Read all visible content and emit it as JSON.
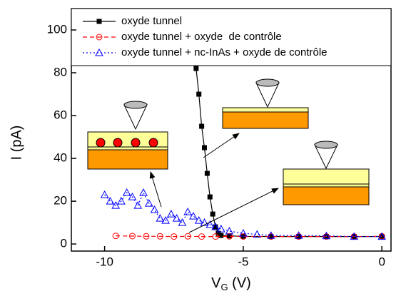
{
  "chart_data": {
    "type": "line",
    "x_label": {
      "main": "V",
      "sub": "G",
      "rest": " (V)"
    },
    "y_label": "I (pA)",
    "xlim": [
      -11.2,
      0.33
    ],
    "ylim": [
      -3.3,
      110
    ],
    "xticks": [
      -10,
      -5,
      0
    ],
    "yticks": [
      0,
      20,
      40,
      60,
      80,
      100
    ],
    "series": [
      {
        "name": "oxyde tunnel",
        "color": "#000000",
        "marker": "square",
        "dash": "solid",
        "x": [
          -6.7,
          -6.6,
          -6.5,
          -6.4,
          -6.3,
          -6.2,
          -6.1,
          -6.0,
          -5.9,
          -5.8,
          -5.5,
          -5,
          -4,
          -3,
          -2,
          -1,
          0
        ],
        "values": [
          82,
          70,
          55,
          45,
          33,
          22,
          14,
          8,
          5,
          4,
          3.8,
          3.6,
          3.5,
          3.5,
          3.5,
          3.5,
          3.5
        ]
      },
      {
        "name": "oxyde tunnel + oxyde  de contrôle",
        "color": "#ff0000",
        "marker": "circle",
        "dash": "dashed",
        "x": [
          -9.6,
          -9,
          -8.5,
          -8,
          -7.5,
          -7,
          -6.5,
          -6,
          -5.5,
          -5,
          -4,
          -3,
          -2,
          -1,
          0
        ],
        "values": [
          3.8,
          3.7,
          3.6,
          3.6,
          3.5,
          3.6,
          3.5,
          3.5,
          3.6,
          3.5,
          3.5,
          3.5,
          3.5,
          3.5,
          3.6
        ]
      },
      {
        "name": "oxyde tunnel + nc-InAs + oxyde de contrôle",
        "color": "#0000ff",
        "marker": "triangle",
        "dash": "dotted",
        "x": [
          -10,
          -9.8,
          -9.6,
          -9.4,
          -9.2,
          -9.0,
          -8.8,
          -8.6,
          -8.4,
          -8.2,
          -8.0,
          -7.8,
          -7.6,
          -7.4,
          -7.2,
          -7.0,
          -6.8,
          -6.6,
          -6.4,
          -6.2,
          -6.0,
          -5.8,
          -5.5,
          -5,
          -4.5,
          -4,
          -3,
          -2,
          -1,
          0
        ],
        "values": [
          23,
          20,
          18,
          20,
          24,
          22,
          18,
          24,
          19,
          16,
          12,
          11,
          14,
          12,
          10,
          15,
          13,
          11,
          10,
          9,
          8,
          7,
          6,
          5,
          4.5,
          4,
          4,
          3.8,
          3.5,
          3.5
        ]
      }
    ]
  }
}
